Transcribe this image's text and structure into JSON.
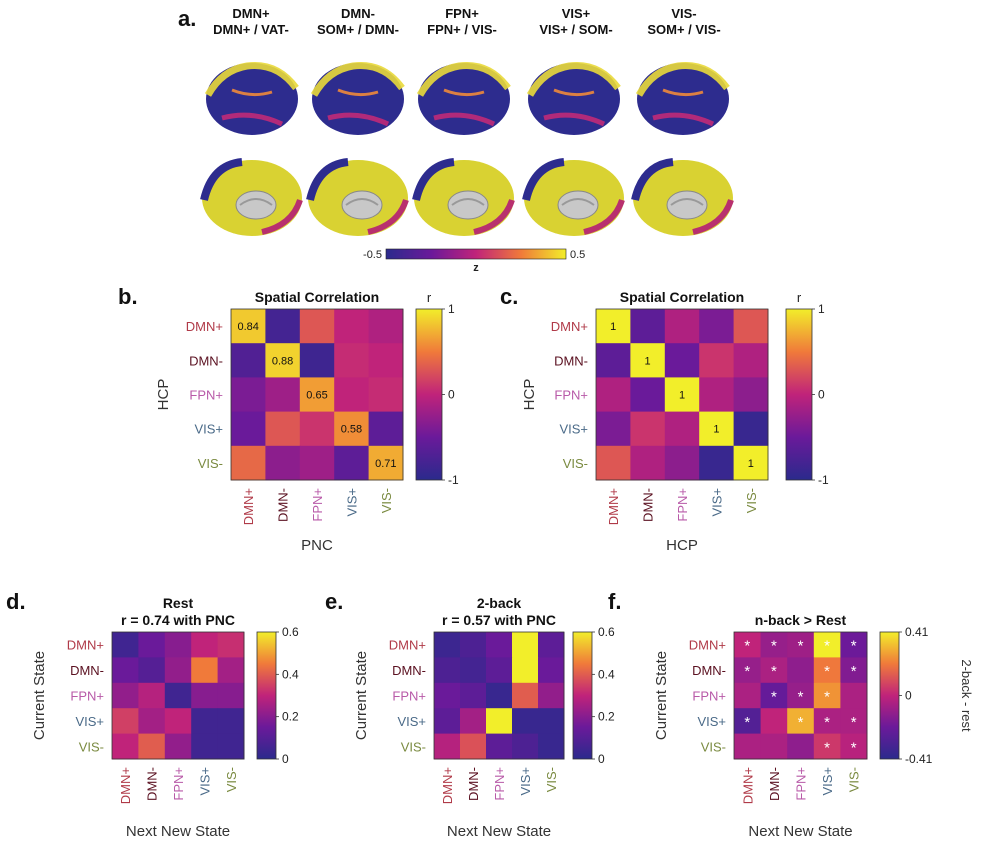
{
  "panel_a": {
    "panel_letter": "a.",
    "columns": [
      {
        "line1": "DMN+",
        "line2": "DMN+ / VAT-"
      },
      {
        "line1": "DMN-",
        "line2": "SOM+ / DMN-"
      },
      {
        "line1": "FPN+",
        "line2": "FPN+ / VIS-"
      },
      {
        "line1": "VIS+",
        "line2": "VIS+ / SOM-"
      },
      {
        "line1": "VIS-",
        "line2": "SOM+ / VIS-"
      }
    ],
    "colorbar": {
      "min_label": "-0.5",
      "max_label": "0.5",
      "label": "z"
    }
  },
  "state_colors": {
    "DMN+": "#b03a48",
    "DMN-": "#5a1020",
    "FPN+": "#b85aa8",
    "VIS+": "#4a6a88",
    "VIS-": "#7a8a40"
  },
  "chart_data": [
    {
      "id": "b",
      "panel_letter": "b.",
      "type": "heatmap",
      "title": "Spatial Correlation",
      "ylabel": "HCP",
      "xlabel": "PNC",
      "rows": [
        "DMN+",
        "DMN-",
        "FPN+",
        "VIS+",
        "VIS-"
      ],
      "cols": [
        "DMN+",
        "DMN-",
        "FPN+",
        "VIS+",
        "VIS-"
      ],
      "values": [
        [
          0.84,
          -0.8,
          0.3,
          0.0,
          -0.1
        ],
        [
          -0.7,
          0.88,
          -0.85,
          0.05,
          0.0
        ],
        [
          -0.4,
          -0.2,
          0.65,
          0.0,
          0.05
        ],
        [
          -0.5,
          0.3,
          0.1,
          0.58,
          -0.6
        ],
        [
          0.4,
          -0.3,
          -0.2,
          -0.6,
          0.71
        ]
      ],
      "annotations": [
        [
          "0.84",
          "",
          "",
          "",
          ""
        ],
        [
          "",
          "0.88",
          "",
          "",
          ""
        ],
        [
          "",
          "",
          "0.65",
          "",
          ""
        ],
        [
          "",
          "",
          "",
          "0.58",
          ""
        ],
        [
          "",
          "",
          "",
          "",
          "0.71"
        ]
      ],
      "colorbar": {
        "label": "r",
        "ticks": [
          "1",
          "0",
          "-1"
        ]
      },
      "range": [
        -1,
        1
      ]
    },
    {
      "id": "c",
      "panel_letter": "c.",
      "type": "heatmap",
      "title": "Spatial Correlation",
      "ylabel": "HCP",
      "xlabel": "HCP",
      "rows": [
        "DMN+",
        "DMN-",
        "FPN+",
        "VIS+",
        "VIS-"
      ],
      "cols": [
        "DMN+",
        "DMN-",
        "FPN+",
        "VIS+",
        "VIS-"
      ],
      "values": [
        [
          1,
          -0.6,
          -0.1,
          -0.4,
          0.3
        ],
        [
          -0.6,
          1,
          -0.5,
          0.1,
          -0.1
        ],
        [
          -0.1,
          -0.5,
          1,
          -0.1,
          -0.3
        ],
        [
          -0.4,
          0.1,
          -0.1,
          1,
          -0.9
        ],
        [
          0.3,
          -0.1,
          -0.3,
          -0.9,
          1
        ]
      ],
      "annotations": [
        [
          "1",
          "",
          "",
          "",
          ""
        ],
        [
          "",
          "1",
          "",
          "",
          ""
        ],
        [
          "",
          "",
          "1",
          "",
          ""
        ],
        [
          "",
          "",
          "",
          "1",
          ""
        ],
        [
          "",
          "",
          "",
          "",
          "1"
        ]
      ],
      "colorbar": {
        "label": "r",
        "ticks": [
          "1",
          "0",
          "-1"
        ]
      },
      "range": [
        -1,
        1
      ]
    },
    {
      "id": "d",
      "panel_letter": "d.",
      "type": "heatmap",
      "title": "Rest",
      "subtitle": "r = 0.74 with PNC",
      "ylabel": "Current State",
      "xlabel": "Next New State",
      "rows": [
        "DMN+",
        "DMN-",
        "FPN+",
        "VIS+",
        "VIS-"
      ],
      "cols": [
        "DMN+",
        "DMN-",
        "FPN+",
        "VIS+",
        "VIS-"
      ],
      "values": [
        [
          0.05,
          0.15,
          0.2,
          0.3,
          0.32
        ],
        [
          0.15,
          0.1,
          0.22,
          0.45,
          0.25
        ],
        [
          0.22,
          0.28,
          0.05,
          0.2,
          0.2
        ],
        [
          0.35,
          0.25,
          0.3,
          0.05,
          0.05
        ],
        [
          0.3,
          0.4,
          0.22,
          0.05,
          0.05
        ]
      ],
      "annotations": [
        [
          "",
          "",
          "",
          "",
          ""
        ],
        [
          "",
          "",
          "",
          "",
          ""
        ],
        [
          "",
          "",
          "",
          "",
          ""
        ],
        [
          "",
          "",
          "",
          "",
          ""
        ],
        [
          "",
          "",
          "",
          "",
          ""
        ]
      ],
      "colorbar": {
        "label": "",
        "ticks": [
          "0.6",
          "0.4",
          "0.2",
          "0"
        ]
      },
      "range": [
        0,
        0.6
      ]
    },
    {
      "id": "e",
      "panel_letter": "e.",
      "type": "heatmap",
      "title": "2-back",
      "subtitle": "r = 0.57 with PNC",
      "ylabel": "Current State",
      "xlabel": "Next New State",
      "rows": [
        "DMN+",
        "DMN-",
        "FPN+",
        "VIS+",
        "VIS-"
      ],
      "cols": [
        "DMN+",
        "DMN-",
        "FPN+",
        "VIS+",
        "VIS-"
      ],
      "values": [
        [
          0.04,
          0.08,
          0.15,
          0.6,
          0.12
        ],
        [
          0.08,
          0.06,
          0.12,
          0.6,
          0.15
        ],
        [
          0.15,
          0.12,
          0.03,
          0.4,
          0.22
        ],
        [
          0.12,
          0.25,
          0.6,
          0.03,
          0.03
        ],
        [
          0.28,
          0.38,
          0.12,
          0.08,
          0.03
        ]
      ],
      "annotations": [
        [
          "",
          "",
          "",
          "",
          ""
        ],
        [
          "",
          "",
          "",
          "",
          ""
        ],
        [
          "",
          "",
          "",
          "",
          ""
        ],
        [
          "",
          "",
          "",
          "",
          ""
        ],
        [
          "",
          "",
          "",
          "",
          ""
        ]
      ],
      "colorbar": {
        "label": "",
        "ticks": [
          "0.6",
          "0.4",
          "0.2",
          "0"
        ]
      },
      "range": [
        0,
        0.6
      ]
    },
    {
      "id": "f",
      "panel_letter": "f.",
      "type": "heatmap",
      "title": "n-back > Rest",
      "ylabel": "Current State",
      "xlabel": "Next New State",
      "rows": [
        "DMN+",
        "DMN-",
        "FPN+",
        "VIS+",
        "VIS-"
      ],
      "cols": [
        "DMN+",
        "DMN-",
        "FPN+",
        "VIS+",
        "VIS-"
      ],
      "values": [
        [
          0.0,
          -0.1,
          -0.08,
          0.41,
          -0.2
        ],
        [
          -0.1,
          -0.05,
          -0.12,
          0.2,
          -0.15
        ],
        [
          -0.05,
          -0.22,
          -0.1,
          0.25,
          -0.05
        ],
        [
          -0.28,
          0.0,
          0.3,
          -0.05,
          -0.05
        ],
        [
          -0.05,
          -0.05,
          -0.12,
          0.05,
          -0.02
        ]
      ],
      "annotations": [
        [
          "*",
          "*",
          "*",
          "*",
          "*"
        ],
        [
          "*",
          "*",
          "",
          "*",
          "*"
        ],
        [
          "",
          "*",
          "*",
          "*",
          ""
        ],
        [
          "*",
          "",
          "*",
          "*",
          "*"
        ],
        [
          "",
          "",
          "",
          "*",
          "*"
        ]
      ],
      "colorbar": {
        "label": "2-back - rest",
        "ticks": [
          "0.41",
          "0",
          "-0.41"
        ]
      },
      "range": [
        -0.41,
        0.41
      ]
    }
  ]
}
